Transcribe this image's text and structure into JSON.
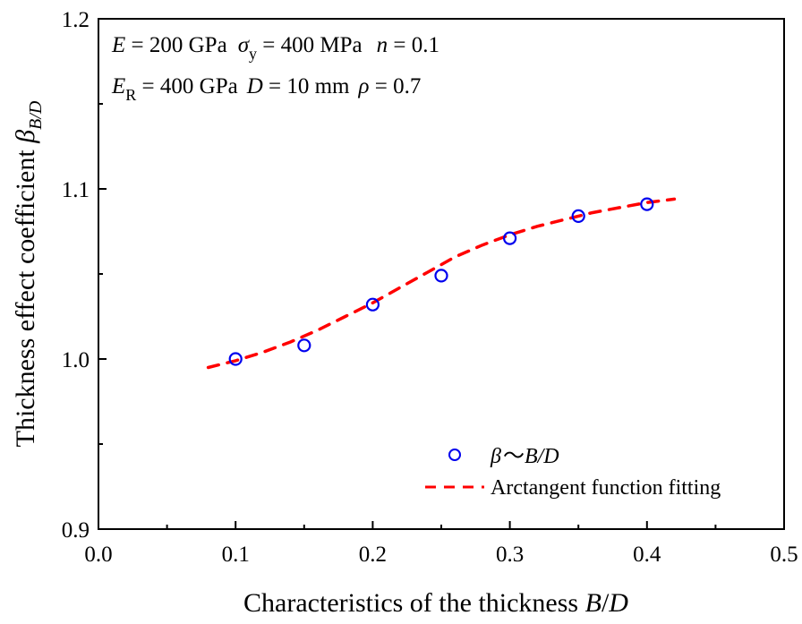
{
  "chart_data": {
    "type": "scatter",
    "title": "",
    "xlabel": "Characteristics of the thickness B/D",
    "xlabel_parts": {
      "text": "Characteristics of the thickness ",
      "italic1": "B",
      "slash": "/",
      "italic2": "D"
    },
    "ylabel": "Thickness effect coefficient β_B/D",
    "ylabel_parts": {
      "text": "Thickness effect coefficient ",
      "symbol": "β",
      "subscript": "B/D"
    },
    "xlim": [
      0.0,
      0.5
    ],
    "ylim": [
      0.9,
      1.2
    ],
    "x_ticks": [
      0.0,
      0.1,
      0.2,
      0.3,
      0.4,
      0.5
    ],
    "x_tick_labels": [
      "0.0",
      "0.1",
      "0.2",
      "0.3",
      "0.4",
      "0.5"
    ],
    "x_minor_ticks": [
      0.05,
      0.15,
      0.25,
      0.35,
      0.45
    ],
    "y_ticks": [
      0.9,
      1.0,
      1.1,
      1.2
    ],
    "y_tick_labels": [
      "0.9",
      "1.0",
      "1.1",
      "1.2"
    ],
    "y_minor_ticks": [
      0.95,
      1.05,
      1.15
    ],
    "grid": false,
    "legend_position": "bottom-right",
    "series": [
      {
        "name": "β～B/D",
        "type": "scatter",
        "marker": "open-circle",
        "color": "#0000ee",
        "x": [
          0.1,
          0.15,
          0.2,
          0.25,
          0.3,
          0.35,
          0.4
        ],
        "y": [
          1.0,
          1.008,
          1.032,
          1.049,
          1.071,
          1.084,
          1.091
        ]
      },
      {
        "name": "Arctangent function fitting",
        "type": "line",
        "style": "dashed",
        "color": "#ff0000",
        "x": [
          0.08,
          0.1,
          0.12,
          0.14,
          0.16,
          0.18,
          0.2,
          0.22,
          0.24,
          0.26,
          0.28,
          0.3,
          0.32,
          0.34,
          0.36,
          0.38,
          0.4,
          0.42
        ],
        "y": [
          0.995,
          0.999,
          1.004,
          1.01,
          1.017,
          1.025,
          1.033,
          1.042,
          1.051,
          1.06,
          1.067,
          1.073,
          1.078,
          1.082,
          1.086,
          1.089,
          1.092,
          1.094
        ]
      }
    ],
    "legend": [
      {
        "label_symbol": "β",
        "label_sep": "～",
        "label_rest": "B/D"
      },
      {
        "label": "Arctangent function fitting"
      }
    ],
    "annotations": {
      "line1": {
        "E_sym": "E",
        "E_val": " = 200 GPa",
        "sigma_sym": "σ",
        "sigma_sub": "y",
        "sigma_val": " = 400 MPa",
        "n_sym": "n",
        "n_val": " = 0.1"
      },
      "line2": {
        "ER_sym": "E",
        "ER_sub": "R",
        "ER_val": " = 400 GPa",
        "D_sym": "D",
        "D_val": " = 10 mm",
        "rho_sym": "ρ",
        "rho_val": " = 0.7"
      }
    }
  }
}
